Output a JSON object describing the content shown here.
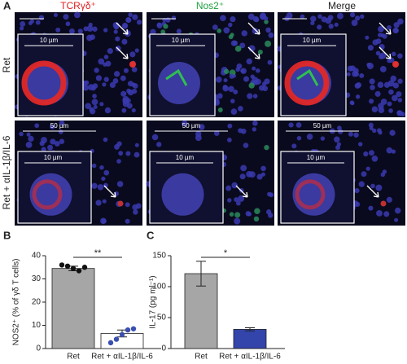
{
  "panel_a": {
    "label": "A",
    "columns": [
      "TCRγδ⁺",
      "Nos2⁺",
      "Merge"
    ],
    "rows": [
      "Ret",
      "Ret + αIL-1β/IL-6"
    ],
    "inset_scale": "10 µm",
    "overview_scale": "50 µm"
  },
  "chart_data": [
    {
      "type": "bar",
      "panel": "B",
      "ylabel": "NOS2⁺ (%  of γδ T cells)",
      "categories": [
        "Ret",
        "Ret + αIL-1β/IL-6"
      ],
      "values": [
        34.5,
        6.5
      ],
      "errors": [
        1,
        1.5
      ],
      "colors": [
        "#a6a6a6",
        "#ffffff"
      ],
      "point_colors": [
        "#111111",
        "#3a4fb0"
      ],
      "points": [
        [
          36,
          35.5,
          34.5,
          33.5,
          35
        ],
        [
          2.5,
          4,
          6,
          8,
          8.5
        ]
      ],
      "significance": "**",
      "ylim": [
        0,
        40
      ],
      "yticks": [
        0,
        10,
        20,
        30,
        40
      ]
    },
    {
      "type": "bar",
      "panel": "C",
      "ylabel": "IL-17 (pg ml⁻¹)",
      "categories": [
        "Ret",
        "Ret + αIL-1β/IL-6"
      ],
      "values": [
        121,
        31
      ],
      "errors": [
        20,
        2.5
      ],
      "colors": [
        "#a6a6a6",
        "#3344aa"
      ],
      "significance": "*",
      "ylim": [
        0,
        150
      ],
      "yticks": [
        0,
        50,
        100,
        150
      ]
    }
  ]
}
